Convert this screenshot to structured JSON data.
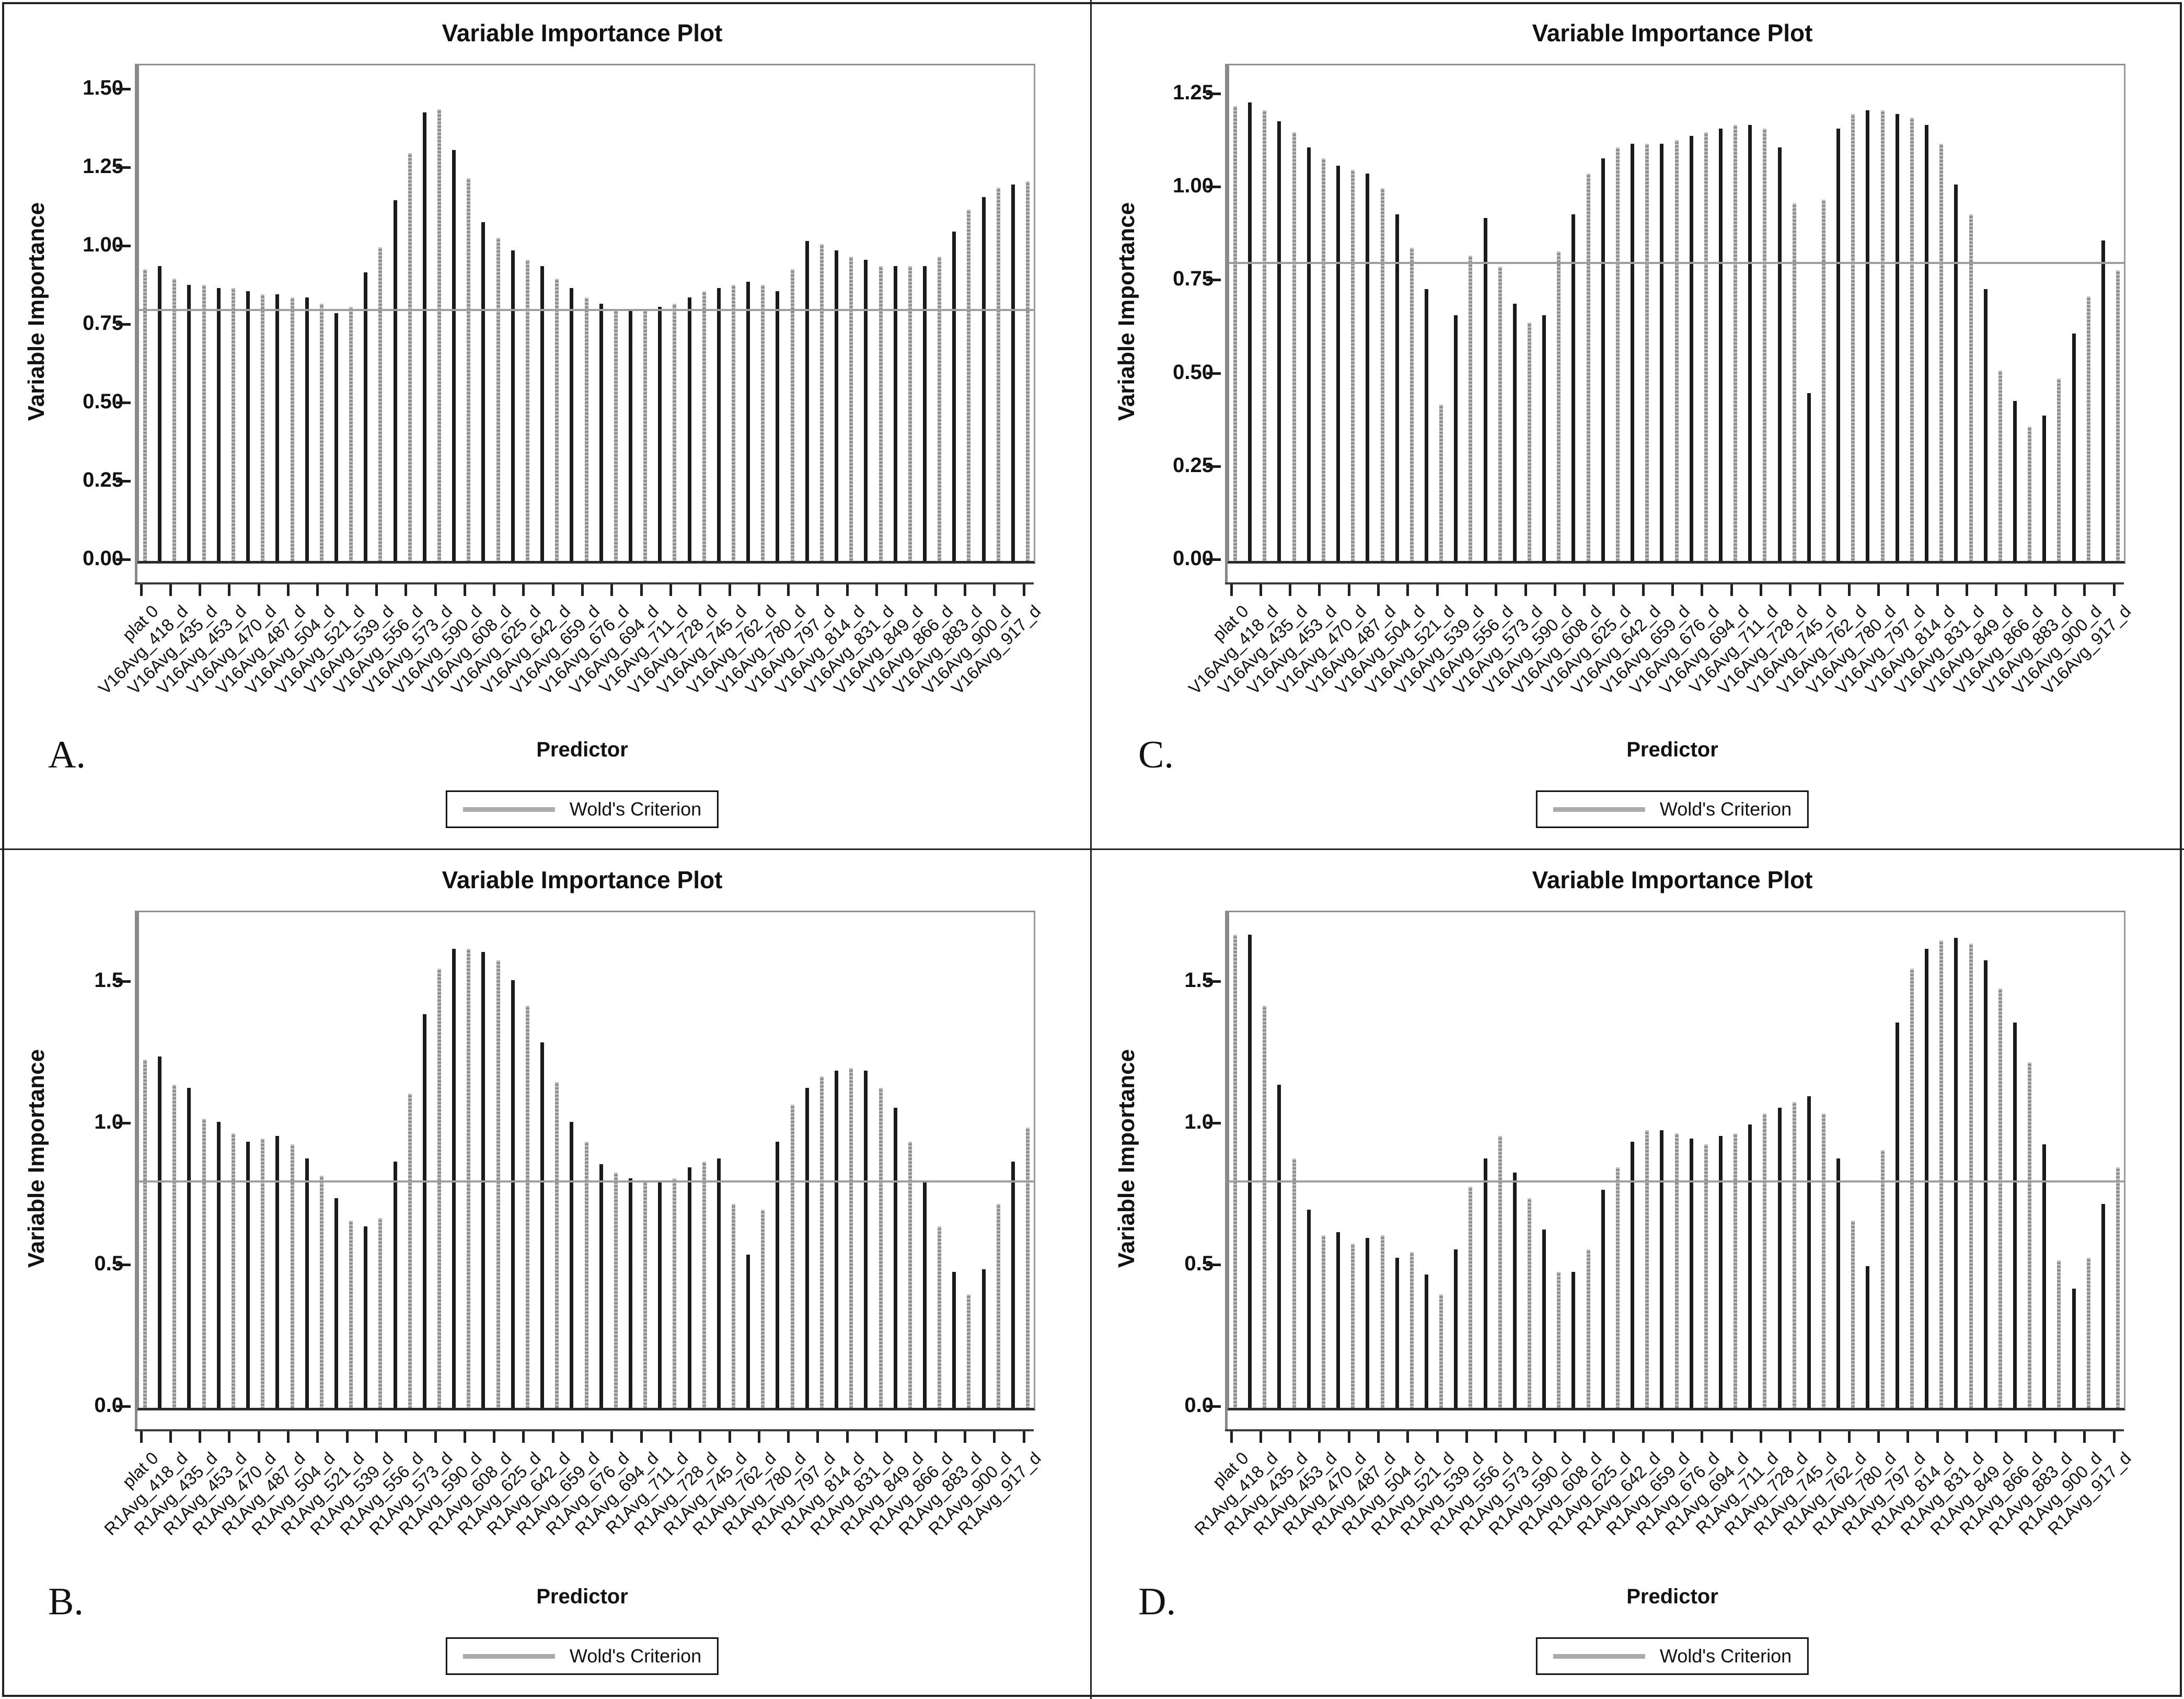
{
  "figure": {
    "colors": {
      "bar_dark": "#1b1b1b",
      "bar_gray": "#8e8e8e",
      "reference_line": "#9e9e9e",
      "legend_swatch": "#ababab"
    }
  },
  "chart_data": [
    {
      "panel": "A",
      "letter": "A.",
      "type": "bar",
      "title": "Variable Importance Plot",
      "ylabel": "Variable Importance",
      "xlabel": "Predictor",
      "legend_label": "Wold's Criterion",
      "reference_line": {
        "name": "Wold's Criterion",
        "value": 0.8
      },
      "ylim": [
        0,
        1.58
      ],
      "ytick_labels": [
        "0.00",
        "0.25",
        "0.50",
        "0.75",
        "1.00",
        "1.25",
        "1.50"
      ],
      "ytick_values": [
        0,
        0.25,
        0.5,
        0.75,
        1.0,
        1.25,
        1.5
      ],
      "grid": false,
      "legend_position": "bottom",
      "categories": [
        "plat 0",
        "V16Avg_418_d",
        "V16Avg_435_d",
        "V16Avg_453_d",
        "V16Avg_470_d",
        "V16Avg_487_d",
        "V16Avg_504_d",
        "V16Avg_521_d",
        "V16Avg_539_d",
        "V16Avg_556_d",
        "V16Avg_573_d",
        "V16Avg_590_d",
        "V16Avg_608_d",
        "V16Avg_625_d",
        "V16Avg_642_d",
        "V16Avg_659_d",
        "V16Avg_676_d",
        "V16Avg_694_d",
        "V16Avg_711_d",
        "V16Avg_728_d",
        "V16Avg_745_d",
        "V16Avg_762_d",
        "V16Avg_780_d",
        "V16Avg_797_d",
        "V16Avg_814_d",
        "V16Avg_831_d",
        "V16Avg_849_d",
        "V16Avg_866_d",
        "V16Avg_883_d",
        "V16Avg_900_d",
        "V16Avg_917_d"
      ],
      "labels_every_other_bar": true,
      "values": [
        0.93,
        0.94,
        0.9,
        0.88,
        0.88,
        0.87,
        0.87,
        0.86,
        0.85,
        0.85,
        0.84,
        0.84,
        0.82,
        0.79,
        0.81,
        0.92,
        1.0,
        1.15,
        1.3,
        1.43,
        1.44,
        1.31,
        1.22,
        1.08,
        1.03,
        0.99,
        0.96,
        0.94,
        0.9,
        0.87,
        0.84,
        0.82,
        0.8,
        0.8,
        0.8,
        0.81,
        0.82,
        0.84,
        0.86,
        0.87,
        0.88,
        0.89,
        0.88,
        0.86,
        0.93,
        1.02,
        1.01,
        0.99,
        0.97,
        0.96,
        0.94,
        0.94,
        0.94,
        0.94,
        0.97,
        1.05,
        1.12,
        1.16,
        1.19,
        1.2,
        1.21
      ]
    },
    {
      "panel": "B",
      "letter": "B.",
      "type": "bar",
      "title": "Variable Importance Plot",
      "ylabel": "Variable Importance",
      "xlabel": "Predictor",
      "legend_label": "Wold's Criterion",
      "reference_line": {
        "name": "Wold's Criterion",
        "value": 0.8
      },
      "ylim": [
        0,
        1.75
      ],
      "ytick_labels": [
        "0.0",
        "0.5",
        "1.0",
        "1.5"
      ],
      "ytick_values": [
        0,
        0.5,
        1.0,
        1.5
      ],
      "grid": false,
      "legend_position": "bottom",
      "categories": [
        "plat 0",
        "R1Avg_418_d",
        "R1Avg_435_d",
        "R1Avg_453_d",
        "R1Avg_470_d",
        "R1Avg_487_d",
        "R1Avg_504_d",
        "R1Avg_521_d",
        "R1Avg_539_d",
        "R1Avg_556_d",
        "R1Avg_573_d",
        "R1Avg_590_d",
        "R1Avg_608_d",
        "R1Avg_625_d",
        "R1Avg_642_d",
        "R1Avg_659_d",
        "R1Avg_676_d",
        "R1Avg_694_d",
        "R1Avg_711_d",
        "R1Avg_728_d",
        "R1Avg_745_d",
        "R1Avg_762_d",
        "R1Avg_780_d",
        "R1Avg_797_d",
        "R1Avg_814_d",
        "R1Avg_831_d",
        "R1Avg_849_d",
        "R1Avg_866_d",
        "R1Avg_883_d",
        "R1Avg_900_d",
        "R1Avg_917_d"
      ],
      "labels_every_other_bar": true,
      "values": [
        1.23,
        1.24,
        1.14,
        1.13,
        1.02,
        1.01,
        0.97,
        0.94,
        0.95,
        0.96,
        0.93,
        0.88,
        0.82,
        0.74,
        0.66,
        0.64,
        0.67,
        0.87,
        1.11,
        1.39,
        1.55,
        1.62,
        1.62,
        1.61,
        1.58,
        1.51,
        1.42,
        1.29,
        1.15,
        1.01,
        0.94,
        0.86,
        0.83,
        0.81,
        0.8,
        0.8,
        0.81,
        0.85,
        0.87,
        0.88,
        0.72,
        0.54,
        0.7,
        0.94,
        1.07,
        1.13,
        1.17,
        1.19,
        1.2,
        1.19,
        1.13,
        1.06,
        0.94,
        0.8,
        0.64,
        0.48,
        0.4,
        0.49,
        0.72,
        0.87,
        0.99
      ]
    },
    {
      "panel": "C",
      "letter": "C.",
      "type": "bar",
      "title": "Variable Importance Plot",
      "ylabel": "Variable Importance",
      "xlabel": "Predictor",
      "legend_label": "Wold's Criterion",
      "reference_line": {
        "name": "Wold's Criterion",
        "value": 0.8
      },
      "ylim": [
        0,
        1.33
      ],
      "ytick_labels": [
        "0.00",
        "0.25",
        "0.50",
        "0.75",
        "1.00",
        "1.25"
      ],
      "ytick_values": [
        0,
        0.25,
        0.5,
        0.75,
        1.0,
        1.25
      ],
      "grid": false,
      "legend_position": "bottom",
      "categories": [
        "plat 0",
        "V16Avg_418_d",
        "V16Avg_435_d",
        "V16Avg_453_d",
        "V16Avg_470_d",
        "V16Avg_487_d",
        "V16Avg_504_d",
        "V16Avg_521_d",
        "V16Avg_539_d",
        "V16Avg_556_d",
        "V16Avg_573_d",
        "V16Avg_590_d",
        "V16Avg_608_d",
        "V16Avg_625_d",
        "V16Avg_642_d",
        "V16Avg_659_d",
        "V16Avg_676_d",
        "V16Avg_694_d",
        "V16Avg_711_d",
        "V16Avg_728_d",
        "V16Avg_745_d",
        "V16Avg_762_d",
        "V16Avg_780_d",
        "V16Avg_797_d",
        "V16Avg_814_d",
        "V16Avg_831_d",
        "V16Avg_849_d",
        "V16Avg_866_d",
        "V16Avg_883_d",
        "V16Avg_900_d",
        "V16Avg_917_d"
      ],
      "labels_every_other_bar": true,
      "values": [
        1.22,
        1.23,
        1.21,
        1.18,
        1.15,
        1.11,
        1.08,
        1.06,
        1.05,
        1.04,
        1.0,
        0.93,
        0.84,
        0.73,
        0.42,
        0.66,
        0.82,
        0.92,
        0.79,
        0.69,
        0.64,
        0.66,
        0.83,
        0.93,
        1.04,
        1.08,
        1.11,
        1.12,
        1.12,
        1.12,
        1.13,
        1.14,
        1.15,
        1.16,
        1.17,
        1.17,
        1.16,
        1.11,
        0.96,
        0.45,
        0.97,
        1.16,
        1.2,
        1.21,
        1.21,
        1.2,
        1.19,
        1.17,
        1.12,
        1.01,
        0.93,
        0.73,
        0.51,
        0.43,
        0.36,
        0.39,
        0.49,
        0.61,
        0.71,
        0.86,
        0.78
      ]
    },
    {
      "panel": "D",
      "letter": "D.",
      "type": "bar",
      "title": "Variable Importance Plot",
      "ylabel": "Variable Importance",
      "xlabel": "Predictor",
      "legend_label": "Wold's Criterion",
      "reference_line": {
        "name": "Wold's Criterion",
        "value": 0.8
      },
      "ylim": [
        0,
        1.75
      ],
      "ytick_labels": [
        "0.0",
        "0.5",
        "1.0",
        "1.5"
      ],
      "ytick_values": [
        0,
        0.5,
        1.0,
        1.5
      ],
      "grid": false,
      "legend_position": "bottom",
      "categories": [
        "plat 0",
        "R1Avg_418_d",
        "R1Avg_435_d",
        "R1Avg_453_d",
        "R1Avg_470_d",
        "R1Avg_487_d",
        "R1Avg_504_d",
        "R1Avg_521_d",
        "R1Avg_539_d",
        "R1Avg_556_d",
        "R1Avg_573_d",
        "R1Avg_590_d",
        "R1Avg_608_d",
        "R1Avg_625_d",
        "R1Avg_642_d",
        "R1Avg_659_d",
        "R1Avg_676_d",
        "R1Avg_694_d",
        "R1Avg_711_d",
        "R1Avg_728_d",
        "R1Avg_745_d",
        "R1Avg_762_d",
        "R1Avg_780_d",
        "R1Avg_797_d",
        "R1Avg_814_d",
        "R1Avg_831_d",
        "R1Avg_849_d",
        "R1Avg_866_d",
        "R1Avg_883_d",
        "R1Avg_900_d",
        "R1Avg_917_d"
      ],
      "labels_every_other_bar": true,
      "values": [
        1.67,
        1.67,
        1.42,
        1.14,
        0.88,
        0.7,
        0.61,
        0.62,
        0.58,
        0.6,
        0.61,
        0.53,
        0.55,
        0.47,
        0.4,
        0.56,
        0.78,
        0.88,
        0.96,
        0.83,
        0.74,
        0.63,
        0.48,
        0.48,
        0.56,
        0.77,
        0.85,
        0.94,
        0.98,
        0.98,
        0.97,
        0.95,
        0.93,
        0.96,
        0.97,
        1.0,
        1.04,
        1.06,
        1.08,
        1.1,
        1.04,
        0.88,
        0.66,
        0.5,
        0.91,
        1.36,
        1.55,
        1.62,
        1.65,
        1.66,
        1.64,
        1.58,
        1.48,
        1.36,
        1.22,
        0.93,
        0.52,
        0.42,
        0.53,
        0.72,
        0.85
      ]
    }
  ]
}
